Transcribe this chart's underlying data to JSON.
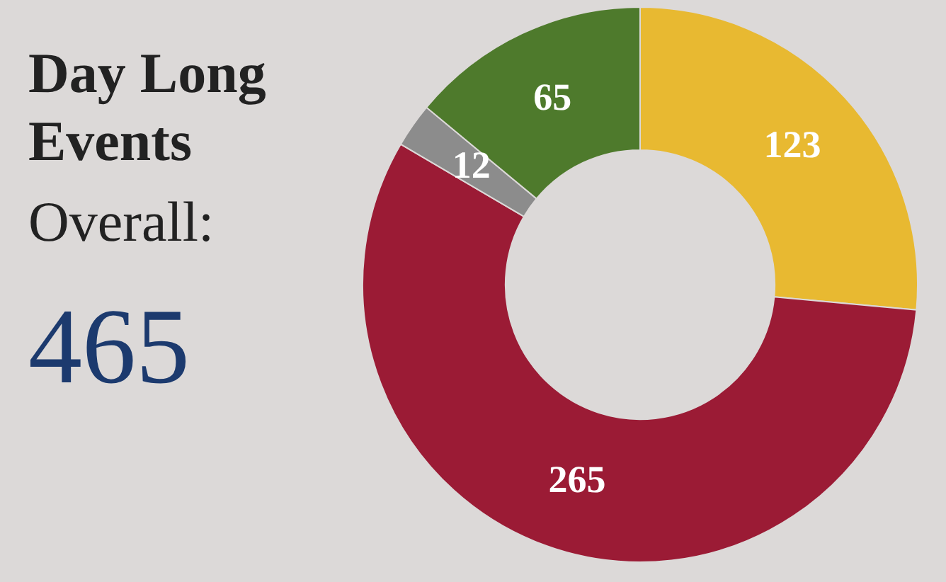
{
  "chart_data": {
    "type": "donut",
    "title": "Day Long Events",
    "subtitle": "Overall:",
    "annotations": [
      "465"
    ],
    "categories": [
      null,
      null,
      null,
      null
    ],
    "values": [
      123,
      265,
      12,
      65
    ],
    "colors": [
      "#e8b931",
      "#9b1b35",
      "#8c8c8c",
      "#4e7a2c"
    ],
    "data_labels": true
  }
}
